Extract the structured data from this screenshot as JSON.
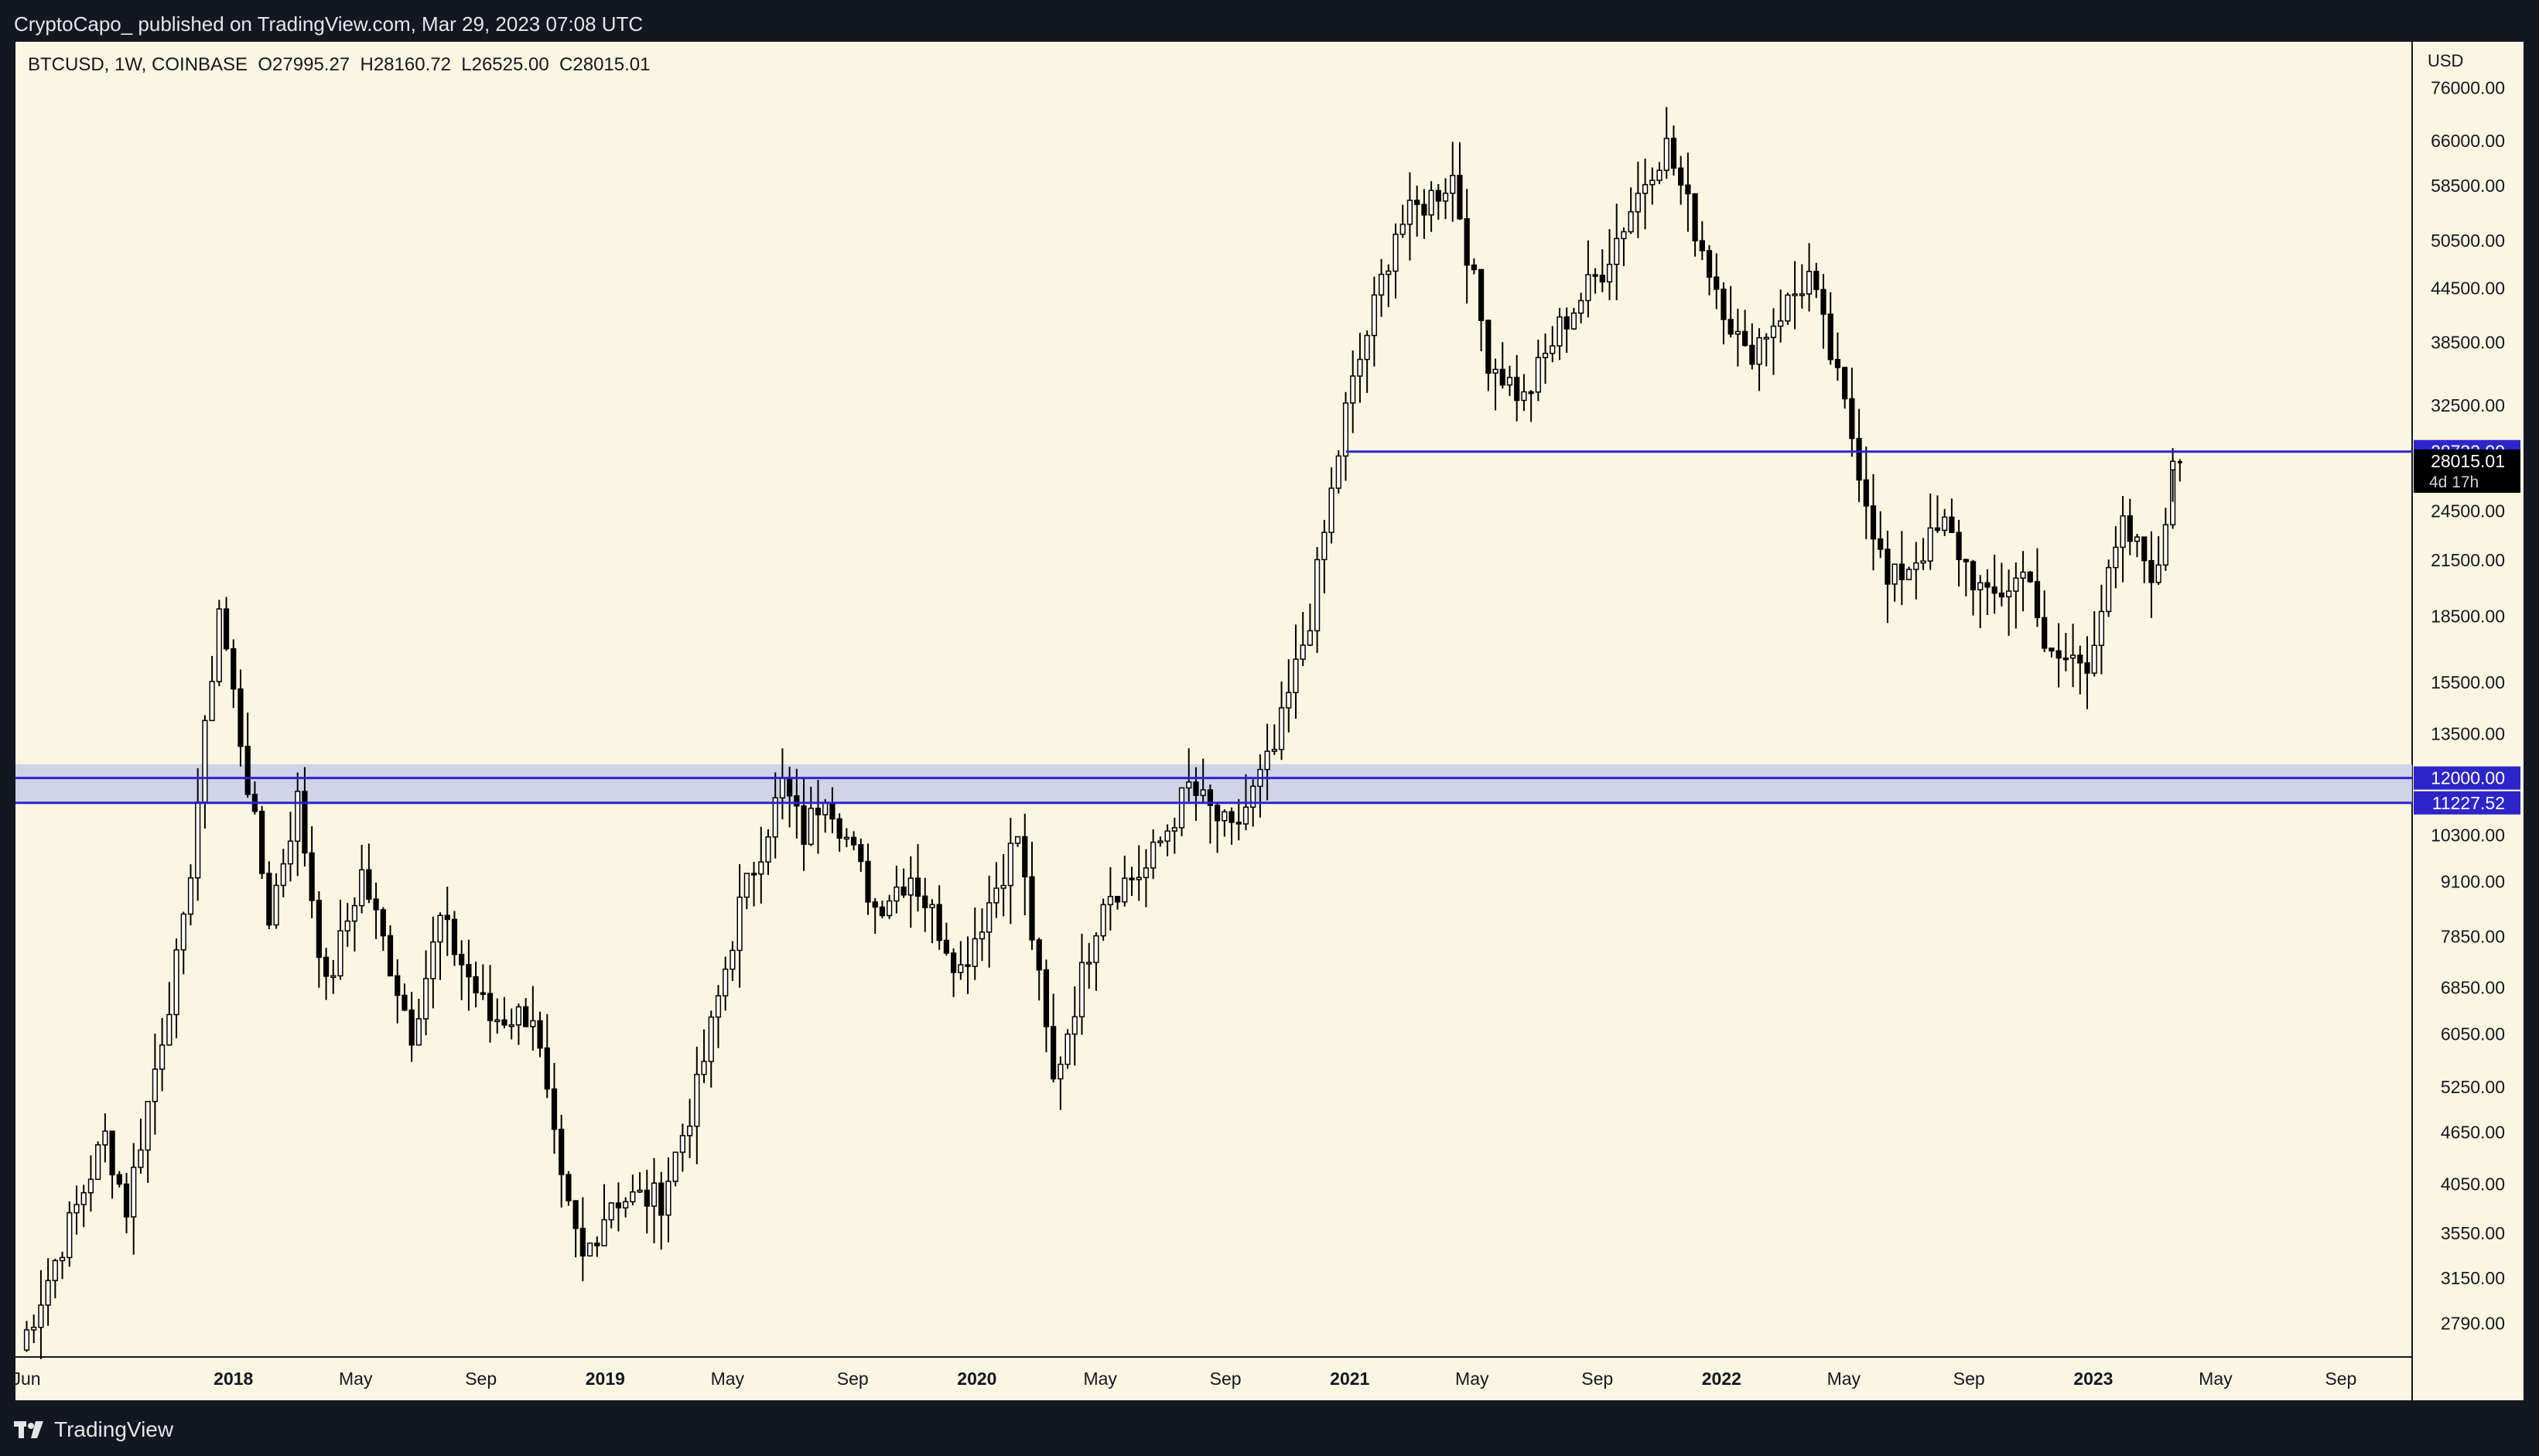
{
  "header": {
    "caption": "CryptoCapo_ published on TradingView.com, Mar 29, 2023 07:08 UTC"
  },
  "legend": {
    "text": "BTCUSD, 1W, COINBASE  O27995.27  H28160.72  L26525.00  C28015.01"
  },
  "footer": {
    "brand": "TradingView"
  },
  "colors": {
    "background": "#fbf6e1",
    "frame": "#131722",
    "candle_fill": "#000000",
    "candle_hollow": "#ffffff",
    "level_line": "#2d25c9",
    "zone_fill": "#c9cde8"
  },
  "chart_data": {
    "type": "candlestick",
    "title": "BTCUSD, 1W, COINBASE",
    "y_axis_unit": "USD",
    "y_scale": "log",
    "y_tick_labels": [
      "76000.00",
      "66000.00",
      "58500.00",
      "50500.00",
      "44500.00",
      "38500.00",
      "32500.00",
      "28015.01",
      "24500.00",
      "21500.00",
      "18500.00",
      "15500.00",
      "13500.00",
      "12000.00",
      "11227.52",
      "10300.00",
      "9100.00",
      "7850.00",
      "6850.00",
      "6050.00",
      "5250.00",
      "4650.00",
      "4050.00",
      "3550.00",
      "3150.00",
      "2790.00"
    ],
    "x_tick_labels": [
      "Jun",
      "2018",
      "May",
      "Sep",
      "2019",
      "May",
      "Sep",
      "2020",
      "May",
      "Sep",
      "2021",
      "May",
      "Sep",
      "2022",
      "May",
      "Sep",
      "2023",
      "May",
      "Sep"
    ],
    "current_price": {
      "value": 28015.01,
      "label": "28015.01",
      "countdown": "4d 17h"
    },
    "horizontal_levels": [
      {
        "value": 28732.0,
        "label": "28732.00"
      },
      {
        "value": 12000.0,
        "label": "12000.00"
      },
      {
        "value": 11227.52,
        "label": "11227.52"
      }
    ],
    "zone": {
      "from": 11227.52,
      "to": 12450.0
    },
    "last_candle": {
      "open": 27995.27,
      "high": 28160.72,
      "low": 26525.0,
      "close": 28015.01
    },
    "anchors": [
      [
        "2017-06-05",
        2600
      ],
      [
        "2017-08-28",
        4600
      ],
      [
        "2017-09-18",
        3800
      ],
      [
        "2017-11-13",
        8000
      ],
      [
        "2017-12-18",
        19000
      ],
      [
        "2018-02-05",
        8300
      ],
      [
        "2018-03-05",
        11300
      ],
      [
        "2018-04-02",
        6800
      ],
      [
        "2018-05-07",
        9300
      ],
      [
        "2018-06-25",
        6100
      ],
      [
        "2018-07-23",
        8200
      ],
      [
        "2018-09-10",
        6300
      ],
      [
        "2018-10-22",
        6400
      ],
      [
        "2018-11-19",
        4000
      ],
      [
        "2018-12-10",
        3300
      ],
      [
        "2019-01-07",
        3900
      ],
      [
        "2019-02-25",
        3900
      ],
      [
        "2019-04-01",
        5200
      ],
      [
        "2019-05-13",
        8500
      ],
      [
        "2019-06-24",
        11800
      ],
      [
        "2019-07-15",
        10300
      ],
      [
        "2019-08-05",
        11700
      ],
      [
        "2019-09-23",
        8500
      ],
      [
        "2019-10-28",
        9300
      ],
      [
        "2019-12-16",
        7200
      ],
      [
        "2020-02-10",
        10300
      ],
      [
        "2020-03-16",
        5300
      ],
      [
        "2020-05-04",
        8800
      ],
      [
        "2020-06-15",
        9400
      ],
      [
        "2020-07-27",
        11700
      ],
      [
        "2020-09-07",
        10300
      ],
      [
        "2020-10-19",
        12900
      ],
      [
        "2020-11-23",
        18500
      ],
      [
        "2020-12-28",
        32000
      ],
      [
        "2021-02-15",
        52000
      ],
      [
        "2021-04-12",
        60000
      ],
      [
        "2021-05-17",
        37000
      ],
      [
        "2021-06-21",
        33000
      ],
      [
        "2021-07-26",
        40000
      ],
      [
        "2021-09-06",
        47000
      ],
      [
        "2021-10-25",
        62000
      ],
      [
        "2021-11-08",
        65000
      ],
      [
        "2021-12-20",
        47000
      ],
      [
        "2022-01-24",
        37000
      ],
      [
        "2022-03-28",
        46000
      ],
      [
        "2022-05-09",
        30000
      ],
      [
        "2022-06-13",
        20000
      ],
      [
        "2022-08-08",
        23500
      ],
      [
        "2022-09-19",
        19200
      ],
      [
        "2022-10-31",
        21000
      ],
      [
        "2022-11-14",
        16500
      ],
      [
        "2022-12-26",
        16500
      ],
      [
        "2023-01-30",
        23300
      ],
      [
        "2023-03-06",
        20500
      ],
      [
        "2023-03-20",
        28000
      ],
      [
        "2023-03-27",
        28015
      ]
    ],
    "x_range": [
      "2017-06-01",
      "2023-11-10"
    ],
    "y_range": [
      2550,
      86000
    ]
  }
}
